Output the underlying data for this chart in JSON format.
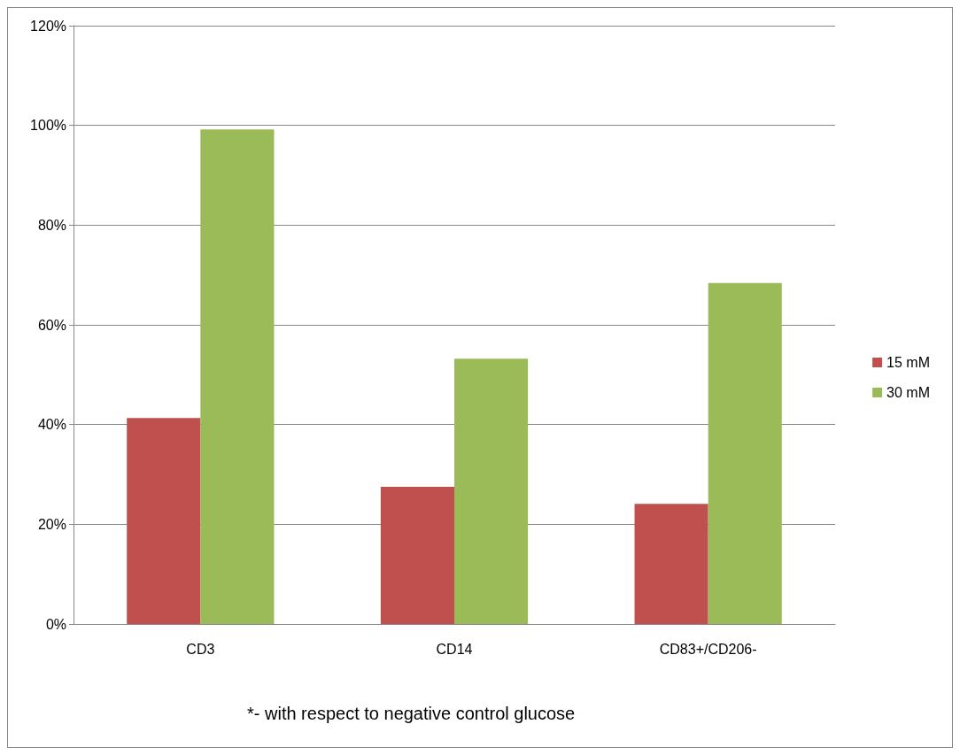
{
  "chart_data": {
    "type": "bar",
    "categories": [
      "CD3",
      "CD14",
      "CD83+/CD206-"
    ],
    "series": [
      {
        "name": "15 mM",
        "color": "#c0504d",
        "values": [
          41.3,
          27.5,
          24.1
        ]
      },
      {
        "name": "30 mM",
        "color": "#9bbb59",
        "values": [
          99.2,
          53.2,
          68.4
        ]
      }
    ],
    "ylim": [
      0,
      120
    ],
    "yticks": [
      {
        "value": 0,
        "label": "0%"
      },
      {
        "value": 20,
        "label": "20%"
      },
      {
        "value": 40,
        "label": "40%"
      },
      {
        "value": 60,
        "label": "60%"
      },
      {
        "value": 80,
        "label": "80%"
      },
      {
        "value": 100,
        "label": "100%"
      },
      {
        "value": 120,
        "label": "120%"
      }
    ],
    "grid": "y",
    "legend": "right",
    "annotations": [
      "*- with respect to negative control glucose"
    ]
  }
}
